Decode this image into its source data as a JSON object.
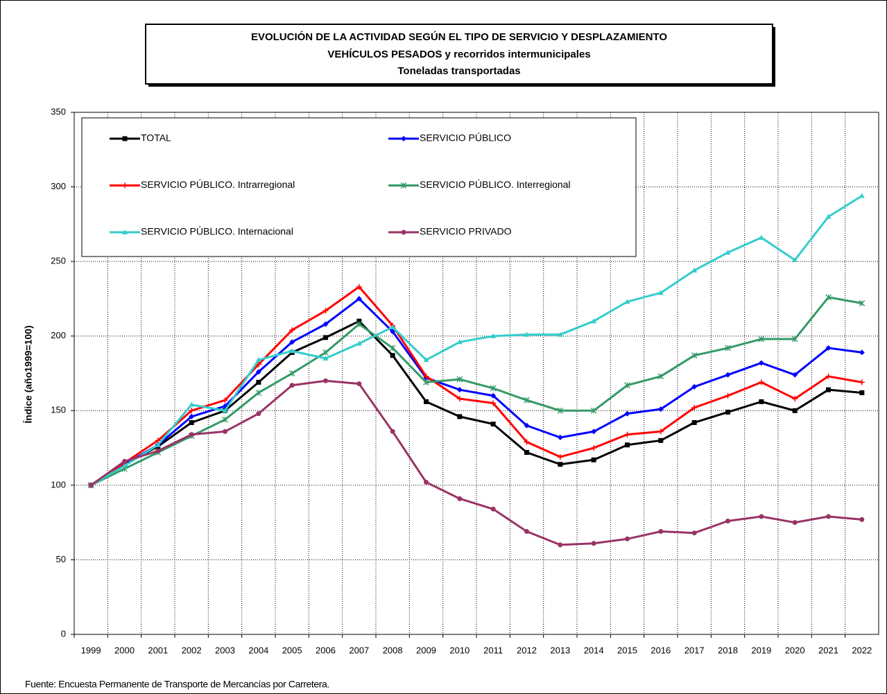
{
  "chart_data": {
    "type": "line",
    "title": [
      "EVOLUCIÓN  DE  LA  ACTIVIDAD  SEGÚN  EL  TIPO  DE  SERVICIO  Y  DESPLAZAMIENTO",
      "VEHÍCULOS  PESADOS  y  recorridos  intermunicipales",
      "Toneladas transportadas"
    ],
    "y_label": "Índice (año1999=100)",
    "source": "Fuente: Encuesta Permanente de Transporte de Mercancías por Carretera.",
    "categories": [
      "1999",
      "2000",
      "2001",
      "2002",
      "2003",
      "2004",
      "2005",
      "2006",
      "2007",
      "2008",
      "2009",
      "2010",
      "2011",
      "2012",
      "2013",
      "2014",
      "2015",
      "2016",
      "2017",
      "2018",
      "2019",
      "2020",
      "2021",
      "2022"
    ],
    "ylim": [
      0,
      350
    ],
    "yticks": [
      0,
      50,
      100,
      150,
      200,
      250,
      300,
      350
    ],
    "grid": true,
    "legend": "top-left",
    "series": [
      {
        "name": "TOTAL",
        "color": "#000000",
        "marker": "square",
        "values": [
          100,
          114,
          126,
          142,
          150,
          169,
          189,
          199,
          210,
          187,
          156,
          146,
          141,
          122,
          114,
          117,
          127,
          130,
          142,
          149,
          156,
          150,
          164,
          162
        ]
      },
      {
        "name": "SERVICIO PÚBLICO",
        "color": "#0000ff",
        "marker": "diamond",
        "values": [
          100,
          114,
          127,
          146,
          153,
          176,
          196,
          208,
          225,
          203,
          172,
          164,
          160,
          140,
          132,
          136,
          148,
          151,
          166,
          174,
          182,
          174,
          192,
          189
        ]
      },
      {
        "name": "SERVICIO PÚBLICO. Intrarregional",
        "color": "#ff0000",
        "marker": "plus",
        "values": [
          100,
          115,
          130,
          150,
          157,
          181,
          204,
          217,
          233,
          207,
          173,
          158,
          155,
          129,
          119,
          125,
          134,
          136,
          152,
          160,
          169,
          158,
          173,
          169
        ]
      },
      {
        "name": "SERVICIO PÚBLICO. Interregional",
        "color": "#339966",
        "marker": "star",
        "values": [
          100,
          111,
          122,
          133,
          144,
          162,
          175,
          189,
          208,
          192,
          169,
          171,
          165,
          157,
          150,
          150,
          167,
          173,
          187,
          192,
          198,
          198,
          226,
          222
        ]
      },
      {
        "name": "SERVICIO PÚBLICO. Internacional",
        "color": "#33cccc",
        "marker": "triangle",
        "values": [
          100,
          113,
          127,
          154,
          150,
          184,
          190,
          185,
          195,
          206,
          184,
          196,
          200,
          201,
          201,
          210,
          223,
          229,
          244,
          256,
          266,
          251,
          280,
          294
        ]
      },
      {
        "name": "SERVICIO PRIVADO",
        "color": "#993366",
        "marker": "circle",
        "values": [
          100,
          116,
          123,
          134,
          136,
          148,
          167,
          170,
          168,
          136,
          102,
          91,
          84,
          69,
          60,
          61,
          64,
          69,
          68,
          76,
          79,
          75,
          79,
          77
        ]
      }
    ]
  }
}
